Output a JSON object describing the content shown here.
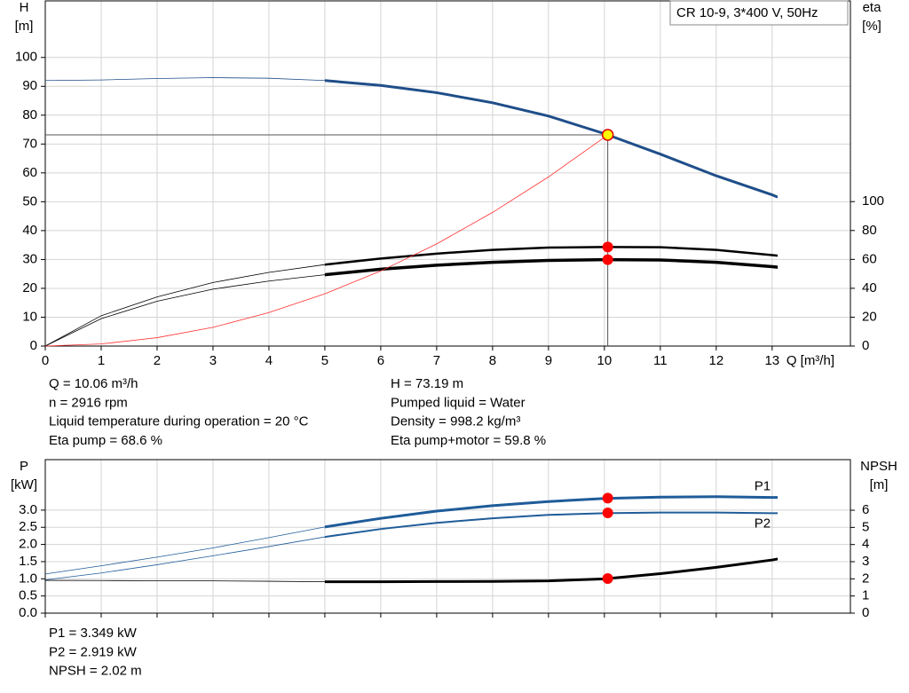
{
  "chart_data": [
    {
      "type": "line",
      "title": "CR 10-9, 3*400 V, 50Hz",
      "ylabel": "H",
      "yunit": "[m]",
      "y2label": "eta",
      "y2unit": "[%]",
      "xlabel": "Q [m³/h]",
      "xlim": [
        0,
        14.4
      ],
      "xticks": [
        0,
        1,
        2,
        3,
        4,
        5,
        6,
        7,
        8,
        9,
        10,
        11,
        12,
        13
      ],
      "ylim": [
        0,
        119.6
      ],
      "yticks": [
        0,
        10,
        20,
        30,
        40,
        50,
        60,
        70,
        80,
        90,
        100
      ],
      "y2lim": [
        0,
        239
      ],
      "y2ticks": [
        0,
        20,
        40,
        60,
        80,
        100
      ],
      "grid": true,
      "crosshair": true,
      "operating_range": [
        5,
        13.1
      ],
      "x": [
        0,
        1,
        2,
        3,
        4,
        5,
        6,
        7,
        8,
        9,
        10,
        11,
        12,
        13,
        13.1
      ],
      "series": [
        {
          "color": "#1f4e89",
          "width": 3,
          "values": [
            92,
            92.2,
            92.7,
            93,
            92.8,
            92,
            90.3,
            87.8,
            84.3,
            79.7,
            73.6,
            66.5,
            59,
            52.4,
            51.6
          ]
        },
        {
          "color": "#000000",
          "width": 2.5,
          "axis": "y2",
          "values": [
            0,
            21,
            34,
            44,
            51,
            56.4,
            60.6,
            64,
            66.6,
            68.2,
            68.6,
            68.4,
            66.6,
            63,
            62.6
          ]
        },
        {
          "color": "#000000",
          "width": 3.5,
          "axis": "y2",
          "values": [
            0,
            19,
            31,
            39.4,
            45,
            49.4,
            53.2,
            56,
            58,
            59.3,
            59.8,
            59.6,
            58,
            55,
            54.6
          ]
        },
        {
          "color": "#ff3030",
          "width": 0.8,
          "x": [
            0,
            1,
            2,
            3,
            4,
            5,
            6,
            7,
            8,
            9,
            10,
            10.06
          ],
          "values": [
            0,
            0.72,
            2.9,
            6.5,
            11.6,
            18.1,
            26,
            35.4,
            46.3,
            58.6,
            72.3,
            73.19
          ]
        }
      ],
      "markers": [
        {
          "x": 10.06,
          "y": 73.19,
          "color": "#ffff00"
        },
        {
          "x": 10.06,
          "y": 68.6,
          "axis": "y2",
          "color": "#ff0000"
        },
        {
          "x": 10.06,
          "y": 59.8,
          "axis": "y2",
          "color": "#ff0000"
        }
      ],
      "notes": [
        "Q = 10.06 m³/h",
        "n = 2916 rpm",
        "Liquid temperature during operation = 20 °C",
        "Eta pump = 68.6 %",
        "H = 73.19 m",
        "Pumped liquid = Water",
        "Density = 998.2 kg/m³",
        "Eta pump+motor = 59.8 %"
      ]
    },
    {
      "type": "line",
      "ylabel": "P",
      "yunit": "[kW]",
      "y2label": "NPSH",
      "y2unit": "[m]",
      "xlim": [
        0,
        14.4
      ],
      "ylim": [
        0,
        4.47
      ],
      "yticks": [
        {
          "value": 0,
          "label": "0.0"
        },
        0.5,
        {
          "value": 1,
          "label": "1.0"
        },
        1.5,
        {
          "value": 2,
          "label": "2.0"
        },
        2.5,
        {
          "value": 3,
          "label": "3.0"
        }
      ],
      "y2lim": [
        0,
        8.95
      ],
      "y2ticks": [
        0,
        1,
        2,
        3,
        4,
        5,
        6
      ],
      "grid": true,
      "operating_range": [
        5,
        13.1
      ],
      "x": [
        0,
        1,
        2,
        3,
        4,
        5,
        6,
        7,
        8,
        9,
        10,
        11,
        12,
        13,
        13.1
      ],
      "series": [
        {
          "name": "P1",
          "color": "#1f5c99",
          "width": 3,
          "values": [
            1.14,
            1.38,
            1.63,
            1.9,
            2.2,
            2.51,
            2.76,
            2.97,
            3.13,
            3.25,
            3.34,
            3.38,
            3.39,
            3.37,
            3.37
          ]
        },
        {
          "name": "P2",
          "color": "#1f5c99",
          "width": 2,
          "values": [
            0.97,
            1.17,
            1.41,
            1.67,
            1.94,
            2.22,
            2.45,
            2.63,
            2.76,
            2.86,
            2.91,
            2.93,
            2.93,
            2.91,
            2.91
          ]
        },
        {
          "color": "#000000",
          "width": 3,
          "axis": "y2",
          "values": [
            1.91,
            1.9,
            1.89,
            1.88,
            1.86,
            1.83,
            1.83,
            1.84,
            1.85,
            1.88,
            2.0,
            2.3,
            2.67,
            3.1,
            3.16
          ]
        }
      ],
      "markers": [
        {
          "x": 10.06,
          "y": 3.349,
          "color": "#ff0000"
        },
        {
          "x": 10.06,
          "y": 2.919,
          "color": "#ff0000"
        },
        {
          "x": 10.06,
          "y": 2.02,
          "axis": "y2",
          "color": "#ff0000"
        }
      ],
      "notes": [
        "P1 = 3.349 kW",
        "P2 = 2.919 kW",
        "NPSH = 2.02 m"
      ]
    }
  ]
}
